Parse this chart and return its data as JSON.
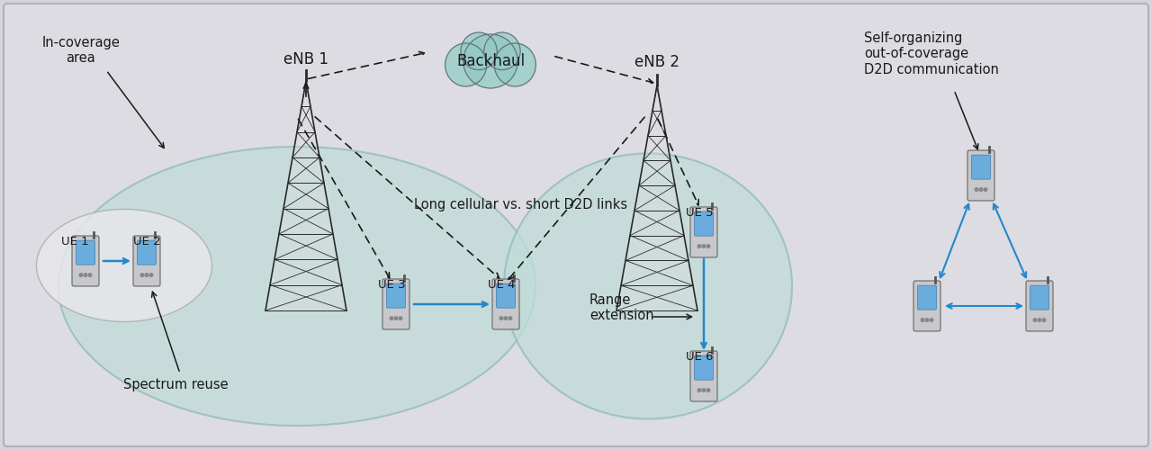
{
  "bg_color": "#d4d4dc",
  "panel_facecolor": "#dcdce2",
  "panel_edgecolor": "#b0b0b8",
  "ellipse_facecolor": "#c0dcd8",
  "ellipse_edgecolor": "#90bab6",
  "small_ellipse_facecolor": "#e8e8ec",
  "small_ellipse_edgecolor": "#aaaaaa",
  "cloud_facecolor": "#96c8c4",
  "cloud_edgecolor": "#607878",
  "blue": "#2288cc",
  "black": "#1a1a1a",
  "gray": "#444444",
  "text_black": "#1a1a1a",
  "labels": {
    "in_coverage": "In-coverage\narea",
    "enb1": "eNB 1",
    "enb2": "eNB 2",
    "backhaul": "Backhaul",
    "ue1": "UE 1",
    "ue2": "UE 2",
    "ue3": "UE 3",
    "ue4": "UE 4",
    "ue5": "UE 5",
    "ue6": "UE 6",
    "spectrum_reuse": "Spectrum reuse",
    "long_cellular": "Long cellular vs. short D2D links",
    "range_ext": "Range\nextension",
    "self_org": "Self-organizing\nout-of-coverage\nD2D communication"
  },
  "font_size_label": 10.5,
  "font_size_ue": 9.5,
  "font_size_enb": 12
}
